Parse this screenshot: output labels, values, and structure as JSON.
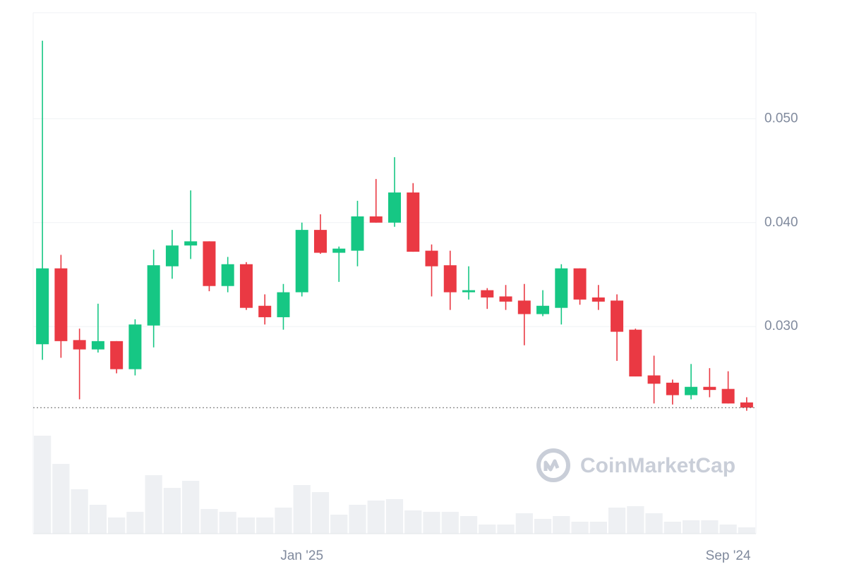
{
  "chart_data": {
    "type": "candlestick",
    "categories": [
      null,
      null,
      null,
      null,
      null,
      null,
      null,
      null,
      null,
      null,
      null,
      null,
      null,
      null,
      "Jan '25",
      null,
      null,
      null,
      null,
      null,
      null,
      null,
      null,
      null,
      null,
      null,
      null,
      null,
      null,
      null,
      null,
      null,
      null,
      null,
      null,
      null,
      null,
      "Sep '24",
      null
    ],
    "open": [
      0.0283,
      0.0356,
      0.0287,
      0.0278,
      0.0286,
      0.0259,
      0.0301,
      0.0358,
      0.0378,
      0.0382,
      0.0339,
      0.036,
      0.032,
      0.0309,
      0.0333,
      0.0393,
      0.0371,
      0.0373,
      0.0406,
      0.04,
      0.0429,
      0.0373,
      0.0359,
      0.0333,
      0.0335,
      0.0329,
      0.0325,
      0.0312,
      0.0318,
      0.0356,
      0.0328,
      0.0325,
      0.0297,
      0.0253,
      0.0246,
      0.0234,
      0.0242,
      0.024,
      0.0227
    ],
    "high": [
      0.0575,
      0.0369,
      0.0298,
      0.0322,
      0.0286,
      0.0307,
      0.0374,
      0.0393,
      0.0431,
      0.0382,
      0.0367,
      0.0362,
      0.0331,
      0.0341,
      0.04,
      0.0408,
      0.0377,
      0.0421,
      0.0442,
      0.0463,
      0.0438,
      0.0379,
      0.0373,
      0.0358,
      0.0337,
      0.034,
      0.0341,
      0.0335,
      0.036,
      0.0356,
      0.034,
      0.0331,
      0.0298,
      0.0272,
      0.0249,
      0.0264,
      0.026,
      0.0257,
      0.0232
    ],
    "low": [
      0.0268,
      0.027,
      0.023,
      0.0275,
      0.0255,
      0.0253,
      0.028,
      0.0346,
      0.0365,
      0.0334,
      0.0333,
      0.0316,
      0.0302,
      0.0297,
      0.0329,
      0.037,
      0.0343,
      0.0358,
      0.04,
      0.0396,
      0.0372,
      0.0329,
      0.0316,
      0.0326,
      0.0317,
      0.0316,
      0.0282,
      0.031,
      0.0302,
      0.0321,
      0.0316,
      0.0267,
      0.0252,
      0.0226,
      0.0225,
      0.023,
      0.0232,
      0.0226,
      0.0219
    ],
    "close": [
      0.0356,
      0.0286,
      0.0278,
      0.0286,
      0.0259,
      0.0302,
      0.0359,
      0.0378,
      0.0382,
      0.0339,
      0.036,
      0.0318,
      0.0309,
      0.0333,
      0.0393,
      0.0371,
      0.0375,
      0.0406,
      0.04,
      0.0429,
      0.0372,
      0.0358,
      0.0333,
      0.0335,
      0.0328,
      0.0324,
      0.0312,
      0.032,
      0.0356,
      0.0326,
      0.0324,
      0.0295,
      0.0252,
      0.0245,
      0.0234,
      0.0242,
      0.0239,
      0.0226,
      0.0222
    ],
    "volume": [
      139,
      99,
      63,
      41,
      23,
      31,
      83,
      65,
      75,
      35,
      31,
      23,
      23,
      37,
      69,
      59,
      27,
      41,
      47,
      49,
      33,
      31,
      31,
      25,
      13,
      13,
      29,
      21,
      25,
      17,
      17,
      37,
      39,
      29,
      17,
      19,
      19,
      13,
      9
    ],
    "up_color": "#16c784",
    "down_color": "#ea3943",
    "volume_color": "#eef0f3",
    "ylim": [
      0.0214,
      0.0602
    ],
    "yticks": [
      {
        "value": 0.03,
        "label": "0.030"
      },
      {
        "value": 0.04,
        "label": "0.040"
      },
      {
        "value": 0.05,
        "label": "0.050"
      }
    ],
    "volume_ylim": [
      0,
      140
    ],
    "grid": true,
    "watermark": "CoinMarketCap"
  }
}
